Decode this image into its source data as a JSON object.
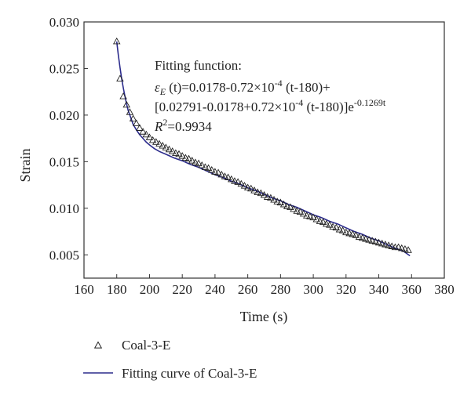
{
  "chart_data": {
    "type": "scatter",
    "xlabel": "Time (s)",
    "ylabel": "Strain",
    "xlim": [
      160,
      380
    ],
    "ylim": [
      0.0025,
      0.03
    ],
    "xticks": [
      160,
      180,
      200,
      220,
      240,
      260,
      280,
      300,
      320,
      340,
      360,
      380
    ],
    "xtick_labels": [
      "160",
      "180",
      "200",
      "220",
      "240",
      "260",
      "280",
      "300",
      "320",
      "340",
      "360",
      "380"
    ],
    "yticks": [
      0.005,
      0.01,
      0.015,
      0.02,
      0.025,
      0.03
    ],
    "ytick_labels": [
      "0.005",
      "0.010",
      "0.015",
      "0.020",
      "0.025",
      "0.030"
    ],
    "grid": false,
    "legend_position": "below",
    "series": [
      {
        "name": "Coal-3-E",
        "kind": "scatter",
        "marker": "triangle-open",
        "x": [
          180,
          182,
          184,
          186,
          188,
          190,
          192,
          194,
          196,
          198,
          200,
          202,
          204,
          206,
          208,
          210,
          212,
          214,
          216,
          218,
          220,
          222,
          224,
          226,
          228,
          230,
          232,
          234,
          236,
          238,
          240,
          242,
          244,
          246,
          248,
          250,
          252,
          254,
          256,
          258,
          260,
          262,
          264,
          266,
          268,
          270,
          272,
          274,
          276,
          278,
          280,
          282,
          284,
          286,
          288,
          290,
          292,
          294,
          296,
          298,
          300,
          302,
          304,
          306,
          308,
          310,
          312,
          314,
          316,
          318,
          320,
          322,
          324,
          326,
          328,
          330,
          332,
          334,
          336,
          338,
          340,
          342,
          344,
          346,
          348,
          350,
          352,
          354,
          356,
          358
        ],
        "y": [
          0.0279,
          0.0239,
          0.022,
          0.0211,
          0.0203,
          0.0196,
          0.0191,
          0.0186,
          0.0182,
          0.0179,
          0.0176,
          0.0173,
          0.0171,
          0.0169,
          0.0167,
          0.0165,
          0.0163,
          0.0161,
          0.0159,
          0.0158,
          0.0156,
          0.0154,
          0.0153,
          0.0151,
          0.0149,
          0.0148,
          0.0146,
          0.0144,
          0.0143,
          0.0141,
          0.0139,
          0.0138,
          0.0136,
          0.0134,
          0.0133,
          0.0131,
          0.0129,
          0.0128,
          0.0126,
          0.0124,
          0.0122,
          0.0121,
          0.0119,
          0.0117,
          0.0116,
          0.0114,
          0.0112,
          0.0111,
          0.0109,
          0.0107,
          0.0106,
          0.0104,
          0.0102,
          0.0101,
          0.0099,
          0.0097,
          0.0096,
          0.0094,
          0.0092,
          0.0091,
          0.009,
          0.0088,
          0.0086,
          0.0085,
          0.0083,
          0.0082,
          0.008,
          0.0079,
          0.0077,
          0.0076,
          0.0074,
          0.0073,
          0.0072,
          0.0071,
          0.0069,
          0.0068,
          0.0067,
          0.0066,
          0.0065,
          0.0064,
          0.0063,
          0.0062,
          0.0061,
          0.006,
          0.0059,
          0.0058,
          0.0058,
          0.0057,
          0.0056,
          0.0055
        ]
      },
      {
        "name": "Fitting curve of Coal-3-E",
        "kind": "line",
        "color": "#2b2b8c",
        "x": [
          180,
          181,
          182,
          183,
          184,
          185,
          186,
          187,
          188,
          190,
          192,
          194,
          196,
          198,
          200,
          203,
          206,
          210,
          215,
          220,
          225,
          230,
          235,
          240,
          245,
          250,
          255,
          260,
          265,
          270,
          275,
          280,
          285,
          290,
          295,
          300,
          305,
          310,
          315,
          320,
          325,
          330,
          335,
          340,
          345,
          350,
          355,
          359
        ],
        "y": [
          0.0279,
          0.0264,
          0.0251,
          0.0239,
          0.0229,
          0.022,
          0.0212,
          0.0205,
          0.02,
          0.019,
          0.0184,
          0.0179,
          0.0175,
          0.0171,
          0.0168,
          0.0164,
          0.0161,
          0.0158,
          0.0154,
          0.0151,
          0.0147,
          0.0144,
          0.014,
          0.0136,
          0.0133,
          0.0129,
          0.0126,
          0.0122,
          0.0119,
          0.0115,
          0.0111,
          0.0108,
          0.0104,
          0.0101,
          0.0097,
          0.0093,
          0.009,
          0.0086,
          0.0083,
          0.0079,
          0.0075,
          0.0072,
          0.0068,
          0.0065,
          0.0061,
          0.0057,
          0.0054,
          0.0049
        ]
      }
    ],
    "annotation": {
      "title": "Fitting function:",
      "eq1_prefix": "ε",
      "eq1_sub": "E",
      "eq1_mid": " (t)=0.0178-0.72×10",
      "eq1_exp": "-4",
      "eq1_end": " (t-180)+",
      "eq2_main": "[0.02791-0.0178+0.72×10",
      "eq2_exp1": "-4",
      "eq2_mid": " (t-180)]e",
      "eq2_exp2": "-0.1269t",
      "r2_prefix": "R",
      "r2_sup": "2",
      "r2_value": "=0.9934"
    }
  }
}
